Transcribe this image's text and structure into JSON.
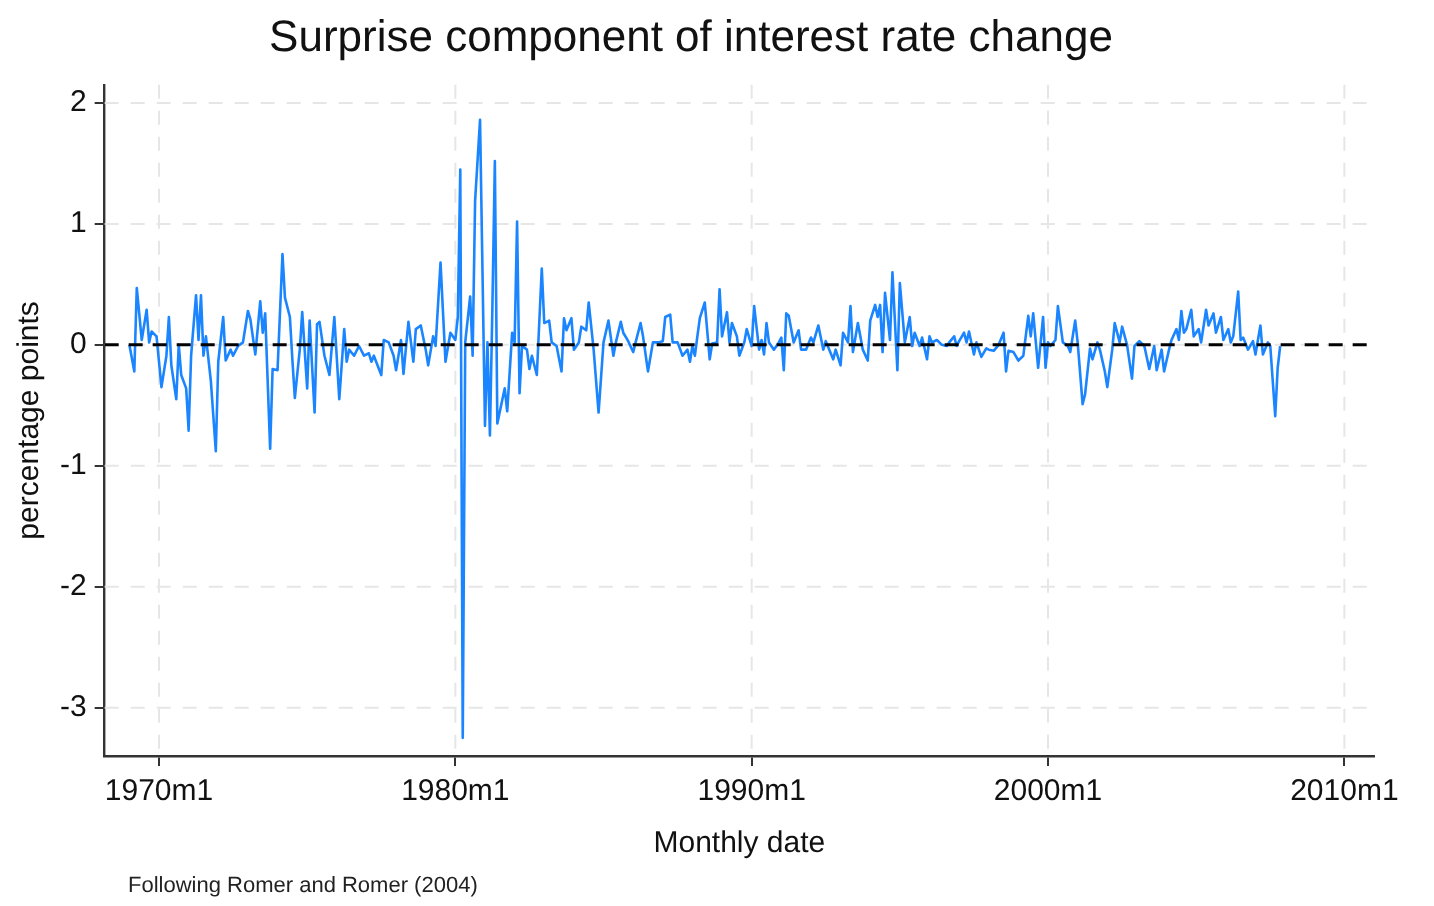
{
  "chart_data": {
    "type": "line",
    "title": "Surprise component of interest rate change",
    "xlabel": "Monthly date",
    "ylabel": "percentage points",
    "annotations": [
      "Following Romer and Romer (2004)"
    ],
    "x": [
      "1969-01",
      "1969-03",
      "1969-04",
      "1969-06",
      "1969-08",
      "1969-09",
      "1969-10",
      "1969-12",
      "1970-02",
      "1970-04",
      "1970-05",
      "1970-06",
      "1970-08",
      "1970-09",
      "1970-10",
      "1970-12",
      "1971-01",
      "1971-02",
      "1971-04",
      "1971-05",
      "1971-06",
      "1971-07",
      "1971-08",
      "1971-10",
      "1971-12",
      "1972-01",
      "1972-03",
      "1972-04",
      "1972-06",
      "1972-07",
      "1972-09",
      "1972-11",
      "1973-01",
      "1973-02",
      "1973-04",
      "1973-06",
      "1973-07",
      "1973-08",
      "1973-10",
      "1973-11",
      "1974-01",
      "1974-03",
      "1974-04",
      "1974-06",
      "1974-07",
      "1974-08",
      "1974-10",
      "1974-11",
      "1975-01",
      "1975-02",
      "1975-04",
      "1975-05",
      "1975-06",
      "1975-08",
      "1975-10",
      "1975-12",
      "1976-02",
      "1976-04",
      "1976-05",
      "1976-06",
      "1976-08",
      "1976-10",
      "1976-12",
      "1977-02",
      "1977-03",
      "1977-04",
      "1977-07",
      "1977-08",
      "1977-10",
      "1977-12",
      "1978-01",
      "1978-03",
      "1978-04",
      "1978-06",
      "1978-08",
      "1978-09",
      "1978-11",
      "1979-01",
      "1979-02",
      "1979-04",
      "1979-05",
      "1979-07",
      "1979-09",
      "1979-11",
      "1980-01",
      "1980-02",
      "1980-03",
      "1980-04",
      "1980-05",
      "1980-07",
      "1980-08",
      "1980-09",
      "1980-11",
      "1981-01",
      "1981-02",
      "1981-03",
      "1981-04",
      "1981-05",
      "1981-06",
      "1981-09",
      "1981-10",
      "1981-12",
      "1982-01",
      "1982-02",
      "1982-03",
      "1982-04",
      "1982-06",
      "1982-07",
      "1982-08",
      "1982-10",
      "1982-12",
      "1983-01",
      "1983-03",
      "1983-04",
      "1983-06",
      "1983-08",
      "1983-09",
      "1983-10",
      "1983-12",
      "1984-01",
      "1984-03",
      "1984-04",
      "1984-06",
      "1984-07",
      "1984-09",
      "1984-11",
      "1985-01",
      "1985-03",
      "1985-05",
      "1985-06",
      "1985-08",
      "1985-09",
      "1985-11",
      "1986-01",
      "1986-02",
      "1986-04",
      "1986-05",
      "1986-07",
      "1986-09",
      "1986-11",
      "1987-01",
      "1987-02",
      "1987-04",
      "1987-05",
      "1987-07",
      "1987-09",
      "1987-11",
      "1987-12",
      "1988-01",
      "1988-02",
      "1988-03",
      "1988-04",
      "1988-06",
      "1988-08",
      "1988-09",
      "1988-11",
      "1988-12",
      "1989-01",
      "1989-03",
      "1989-04",
      "1989-05",
      "1989-07",
      "1989-08",
      "1989-10",
      "1989-11",
      "1990-01",
      "1990-02",
      "1990-04",
      "1990-05",
      "1990-06",
      "1990-07",
      "1990-08",
      "1990-10",
      "1990-12",
      "1991-01",
      "1991-02",
      "1991-03",
      "1991-04",
      "1991-06",
      "1991-08",
      "1991-09",
      "1991-11",
      "1992-01",
      "1992-02",
      "1992-04",
      "1992-06",
      "1992-07",
      "1992-10",
      "1992-11",
      "1993-01",
      "1993-02",
      "1993-04",
      "1993-05",
      "1993-06",
      "1993-08",
      "1993-10",
      "1993-12",
      "1994-01",
      "1994-03",
      "1994-04",
      "1994-05",
      "1994-06",
      "1994-07",
      "1994-09",
      "1994-10",
      "1994-12",
      "1995-01",
      "1995-03",
      "1995-05",
      "1995-06",
      "1995-07",
      "1995-09",
      "1995-10",
      "1995-12",
      "1996-01",
      "1996-02",
      "1996-04",
      "1996-06",
      "1996-08",
      "1996-09",
      "1996-11",
      "1996-12",
      "1997-01",
      "1997-03",
      "1997-04",
      "1997-05",
      "1997-07",
      "1997-08",
      "1997-10",
      "1997-12",
      "1998-01",
      "1998-03",
      "1998-05",
      "1998-07",
      "1998-08",
      "1998-09",
      "1998-11",
      "1999-01",
      "1999-03",
      "1999-05",
      "1999-06",
      "1999-07",
      "1999-09",
      "1999-11",
      "1999-12",
      "2000-01",
      "2000-02",
      "2000-04",
      "2000-05",
      "2000-07",
      "2000-09",
      "2000-10",
      "2000-12",
      "2001-01",
      "2001-03",
      "2001-04",
      "2001-06",
      "2001-07",
      "2001-09",
      "2001-10",
      "2001-12",
      "2002-01",
      "2002-03",
      "2002-04",
      "2002-06",
      "2002-07",
      "2002-09",
      "2002-11",
      "2002-12",
      "2003-02",
      "2003-04",
      "2003-06",
      "2003-08",
      "2003-09",
      "2003-11",
      "2003-12",
      "2004-02",
      "2004-03",
      "2004-05",
      "2004-06",
      "2004-07",
      "2004-08",
      "2004-09",
      "2004-11",
      "2004-12",
      "2005-02",
      "2005-03",
      "2005-05",
      "2005-06",
      "2005-08",
      "2005-09",
      "2005-11",
      "2005-12",
      "2006-02",
      "2006-03",
      "2006-04",
      "2006-06",
      "2006-07",
      "2006-08",
      "2006-10",
      "2006-12",
      "2007-01",
      "2007-02",
      "2007-03",
      "2007-04",
      "2007-06",
      "2007-07",
      "2007-09",
      "2007-10",
      "2007-11"
    ],
    "series": [
      {
        "color": "#1a85ff",
        "values": [
          0,
          -0.22,
          0.47,
          0.04,
          0.29,
          0.02,
          0.11,
          0.07,
          -0.35,
          -0.09,
          0.23,
          -0.17,
          -0.45,
          0,
          -0.25,
          -0.36,
          -0.71,
          -0.09,
          0.41,
          0.04,
          0.41,
          -0.09,
          0.07,
          -0.3,
          -0.88,
          -0.14,
          0.23,
          -0.13,
          -0.04,
          -0.09,
          -0.01,
          0.02,
          0.28,
          0.21,
          -0.08,
          0.36,
          0.1,
          0.26,
          -0.86,
          -0.2,
          -0.21,
          0.75,
          0.39,
          0.23,
          -0.12,
          -0.44,
          -0.04,
          0.27,
          -0.36,
          0.2,
          -0.56,
          0.17,
          0.19,
          -0.09,
          -0.25,
          0.23,
          -0.45,
          0.13,
          -0.14,
          -0.04,
          -0.09,
          -0.01,
          -0.09,
          -0.07,
          -0.14,
          -0.09,
          -0.25,
          0.04,
          0.02,
          -0.09,
          -0.21,
          0.04,
          -0.24,
          0.19,
          -0.14,
          0.13,
          0.16,
          -0.04,
          -0.17,
          0.07,
          -0.01,
          0.68,
          -0.14,
          0.1,
          0.04,
          0.23,
          1.45,
          -3.25,
          0.02,
          0.4,
          -0.09,
          1.19,
          1.86,
          -0.67,
          0.02,
          -0.75,
          0.31,
          1.52,
          -0.65,
          -0.36,
          -0.55,
          0.1,
          0.02,
          1.02,
          -0.4,
          -0.01,
          -0.04,
          -0.2,
          -0.09,
          -0.25,
          0.63,
          0.18,
          0.2,
          0.02,
          -0.01,
          -0.22,
          0.22,
          0.12,
          0.22,
          -0.04,
          0.02,
          0.15,
          0.12,
          0.35,
          -0.04,
          -0.56,
          0.02,
          0.2,
          -0.09,
          0.02,
          0.19,
          0.1,
          0.03,
          -0.06,
          0.02,
          0.18,
          0.07,
          -0.22,
          0.02,
          0.02,
          0.03,
          0.23,
          0.25,
          0.02,
          0.02,
          -0.09,
          -0.04,
          -0.14,
          -0.01,
          -0.09,
          0.07,
          0.22,
          0.35,
          -0.12,
          0.01,
          0.02,
          0.46,
          0.07,
          0.27,
          0.02,
          0.18,
          0.07,
          -0.09,
          0.02,
          0.13,
          -0.01,
          0.32,
          -0.04,
          0.04,
          -0.08,
          0.18,
          0.02,
          -0.04,
          0.02,
          0.06,
          -0.21,
          0.26,
          0.24,
          0.02,
          0.12,
          -0.04,
          -0.04,
          0.06,
          0.02,
          0.16,
          -0.04,
          0.03,
          -0.12,
          -0.04,
          -0.17,
          0.1,
          0.02,
          0.32,
          -0.06,
          0.18,
          -0.04,
          -0.13,
          0.2,
          0.33,
          0.23,
          0.33,
          -0.06,
          0.43,
          0.04,
          0.6,
          -0.21,
          0.51,
          0.02,
          0.23,
          -0.01,
          0.1,
          -0.01,
          0.06,
          -0.12,
          0.07,
          0.02,
          0.04,
          0,
          -0.01,
          0.02,
          0.07,
          -0.01,
          0.03,
          0.1,
          0.02,
          0.11,
          -0.08,
          0.02,
          -0.1,
          -0.03,
          -0.04,
          -0.05,
          0,
          0.1,
          -0.22,
          -0.05,
          -0.06,
          -0.13,
          -0.09,
          0.24,
          0.07,
          0.26,
          -0.19,
          0.23,
          -0.19,
          0.02,
          -0.01,
          0.04,
          0.32,
          0.02,
          -0.01,
          -0.06,
          0.2,
          0.02,
          -0.49,
          -0.41,
          -0.03,
          -0.12,
          0.02,
          -0.04,
          -0.22,
          -0.35,
          -0.04,
          0.18,
          0.02,
          0.15,
          0,
          -0.28,
          -0.01,
          0.03,
          -0.01,
          -0.2,
          -0.01,
          -0.21,
          -0.04,
          -0.22,
          -0.04,
          0.04,
          0.13,
          0.04,
          0.28,
          0.1,
          0.13,
          0.29,
          0.07,
          0.13,
          0.02,
          0.29,
          0.16,
          0.26,
          0.1,
          0.23,
          0.04,
          0.13,
          0.02,
          0.07,
          0.44,
          0.04,
          0.06,
          -0.04,
          0.03,
          -0.08,
          0.04,
          0.16,
          -0.08,
          0.02,
          -0.01,
          -0.59,
          -0.19,
          -0.01
        ]
      }
    ],
    "xlim": [
      "1968-03",
      "2011-01"
    ],
    "xticks": [
      {
        "value": "1970-01",
        "label": "1970m1"
      },
      {
        "value": "1980-01",
        "label": "1980m1"
      },
      {
        "value": "1990-01",
        "label": "1990m1"
      },
      {
        "value": "2000-01",
        "label": "2000m1"
      },
      {
        "value": "2010-01",
        "label": "2010m1"
      }
    ],
    "ylim": [
      -3.4,
      2.15
    ],
    "yticks": [
      -3,
      -2,
      -1,
      0,
      1,
      2
    ],
    "ref_lines": [
      {
        "axis": "y",
        "value": 0,
        "color": "#000000",
        "line_style": "dashed"
      }
    ],
    "grid": true,
    "legend": false,
    "marker": "none",
    "line_style": "solid"
  }
}
